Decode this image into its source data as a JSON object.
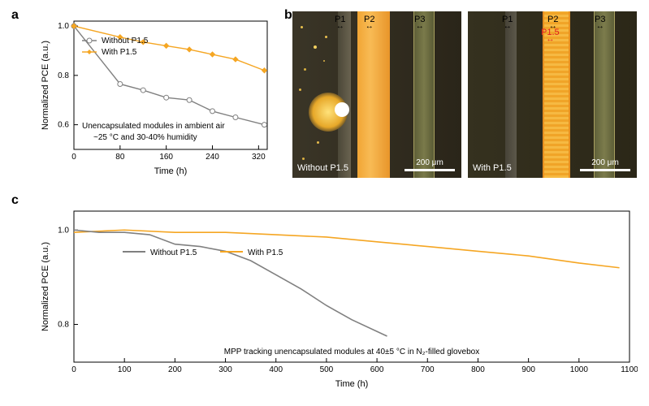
{
  "labels": {
    "a": "a",
    "b": "b",
    "c": "c"
  },
  "colors": {
    "without": "#808080",
    "with": "#f5a623",
    "axis": "#000000",
    "bg": "#ffffff",
    "img_bg_dark": "#2f2b22",
    "stripe_orange": "#f2a43a",
    "stripe_olive": "#6a6b3c",
    "stripe_gray": "#5a5a55",
    "red": "#e02020"
  },
  "panel_a": {
    "xlabel": "Time (h)",
    "ylabel": "Normalized PCE (a.u.)",
    "xlim": [
      0,
      335
    ],
    "ylim": [
      0.5,
      1.02
    ],
    "xticks": [
      0,
      80,
      160,
      240,
      320
    ],
    "yticks": [
      0.6,
      0.8,
      1.0
    ],
    "legend": {
      "without": "Without P1.5",
      "with": "With P1.5"
    },
    "condition_line1": "Unencapsulated modules in ambient air",
    "condition_line2": "~25 °C and 30-40% humidity",
    "series": {
      "without": [
        [
          0,
          1.0
        ],
        [
          80,
          0.765
        ],
        [
          120,
          0.74
        ],
        [
          160,
          0.71
        ],
        [
          200,
          0.7
        ],
        [
          240,
          0.655
        ],
        [
          280,
          0.63
        ],
        [
          330,
          0.6
        ]
      ],
      "with": [
        [
          0,
          1.0
        ],
        [
          80,
          0.955
        ],
        [
          120,
          0.935
        ],
        [
          160,
          0.92
        ],
        [
          200,
          0.905
        ],
        [
          240,
          0.885
        ],
        [
          280,
          0.865
        ],
        [
          330,
          0.82
        ]
      ]
    },
    "marker_size": 3,
    "line_width": 1.4
  },
  "panel_b": {
    "left": {
      "caption": "Without P1.5",
      "scale_text": "200 μm",
      "p_labels": [
        "P1",
        "P2",
        "P3"
      ]
    },
    "right": {
      "caption": "With P1.5",
      "scale_text": "200 μm",
      "p_labels": [
        "P1",
        "P2",
        "P3"
      ],
      "p15_label": "P1.5"
    }
  },
  "panel_c": {
    "xlabel": "Time (h)",
    "ylabel": "Normalized PCE (a.u.)",
    "xlim": [
      0,
      1100
    ],
    "ylim": [
      0.72,
      1.04
    ],
    "xticks": [
      0,
      100,
      200,
      300,
      400,
      500,
      600,
      700,
      800,
      900,
      1000,
      1100
    ],
    "yticks": [
      0.8,
      1.0
    ],
    "legend": {
      "without": "Without P1.5",
      "with": "With P1.5"
    },
    "condition": "MPP tracking unencapsulated modules at 40±5 °C in N₂-filled glovebox",
    "series": {
      "without": [
        [
          0,
          1.0
        ],
        [
          50,
          0.995
        ],
        [
          100,
          0.995
        ],
        [
          150,
          0.99
        ],
        [
          200,
          0.97
        ],
        [
          250,
          0.965
        ],
        [
          300,
          0.955
        ],
        [
          350,
          0.935
        ],
        [
          400,
          0.905
        ],
        [
          450,
          0.875
        ],
        [
          500,
          0.84
        ],
        [
          550,
          0.81
        ],
        [
          620,
          0.775
        ]
      ],
      "with": [
        [
          0,
          0.995
        ],
        [
          100,
          1.0
        ],
        [
          200,
          0.995
        ],
        [
          300,
          0.995
        ],
        [
          400,
          0.99
        ],
        [
          500,
          0.985
        ],
        [
          600,
          0.975
        ],
        [
          700,
          0.965
        ],
        [
          800,
          0.955
        ],
        [
          900,
          0.945
        ],
        [
          1000,
          0.93
        ],
        [
          1080,
          0.92
        ]
      ]
    },
    "line_width": 1.6
  }
}
